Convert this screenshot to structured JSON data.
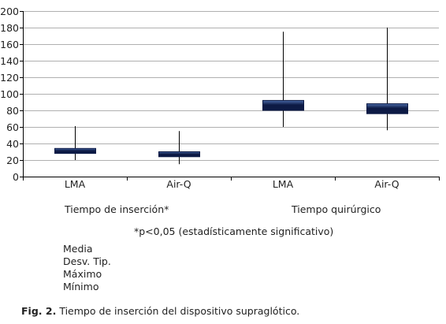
{
  "chart_data": {
    "type": "box",
    "categories": [
      "LMA",
      "Air-Q",
      "LMA",
      "Air-Q"
    ],
    "groups": [
      {
        "label": "Tiempo de inserción*",
        "categories": [
          "LMA",
          "Air-Q"
        ]
      },
      {
        "label": "Tiempo quirúrgico",
        "categories": [
          "LMA",
          "Air-Q"
        ]
      }
    ],
    "boxes": [
      {
        "category": "LMA",
        "group": "Tiempo de inserción*",
        "mean": 31,
        "sd": 3,
        "max": 61,
        "min": 20
      },
      {
        "category": "Air-Q",
        "group": "Tiempo de inserción*",
        "mean": 27,
        "sd": 3,
        "max": 55,
        "min": 15
      },
      {
        "category": "LMA",
        "group": "Tiempo quirúrgico",
        "mean": 86,
        "sd": 6,
        "max": 175,
        "min": 60
      },
      {
        "category": "Air-Q",
        "group": "Tiempo quirúrgico",
        "mean": 82,
        "sd": 6,
        "max": 180,
        "min": 56
      }
    ],
    "ylim": [
      0,
      200
    ],
    "yticks": [
      0,
      20,
      40,
      60,
      80,
      100,
      120,
      140,
      160,
      180,
      200
    ],
    "grid": true,
    "note": "*p<0,05 (estadísticamente significativo)",
    "legend_items": [
      "Media",
      "Desv. Tip.",
      "Máximo",
      "Mínimo"
    ],
    "colors": {
      "box_dark": "#0d1a45",
      "box_light": "#4a6aa8",
      "axis": "#000000",
      "grid": "#b0b0b0"
    }
  },
  "caption": {
    "label": "Fig. 2.",
    "text": "Tiempo de inserción del dispositivo supraglótico."
  }
}
